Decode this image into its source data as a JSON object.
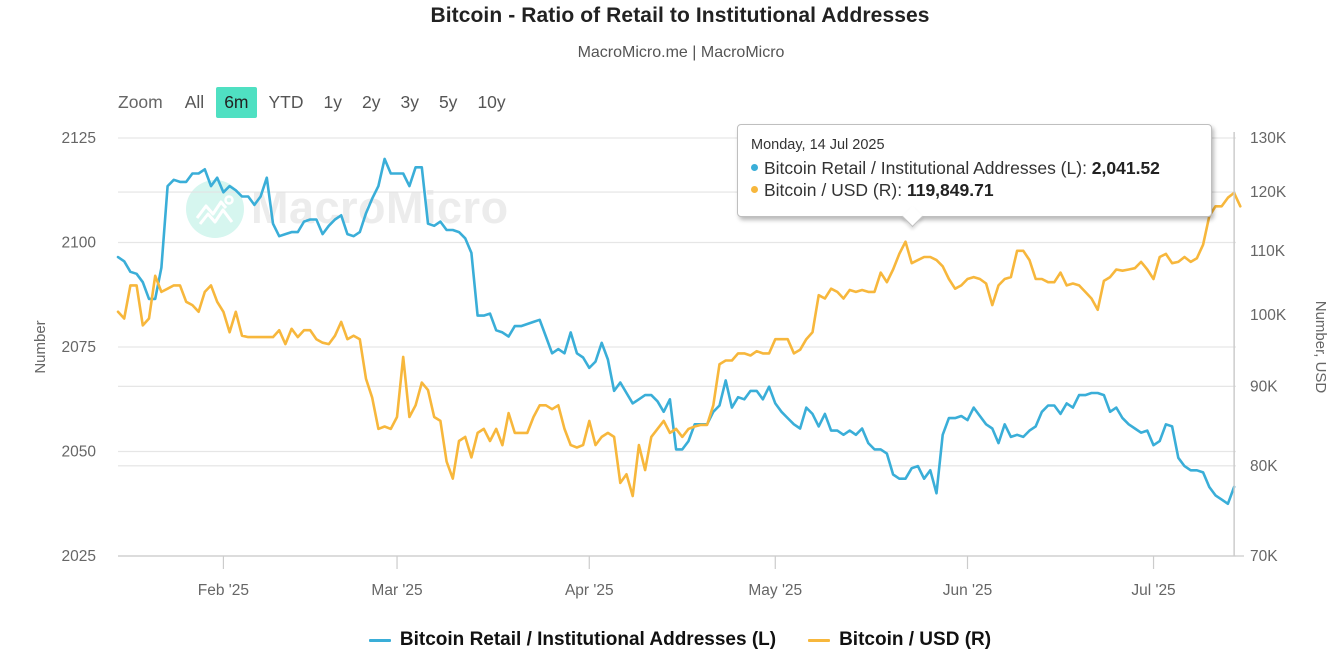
{
  "header": {
    "title": "Bitcoin - Ratio of Retail to Institutional Addresses",
    "subtitle": "MacroMicro.me | MacroMicro"
  },
  "range_selector": {
    "label": "Zoom",
    "buttons": [
      "All",
      "6m",
      "YTD",
      "1y",
      "2y",
      "3y",
      "5y",
      "10y"
    ],
    "active": "6m",
    "active_color": "#4fe0c2"
  },
  "watermark": {
    "text": "MacroMicro",
    "icon": "macromicro-logo-icon"
  },
  "tooltip": {
    "date": "Monday, 14 Jul 2025",
    "rows": [
      {
        "label": "Bitcoin Retail / Institutional Addresses (L): ",
        "value": "2,041.52",
        "color": "#3aaed8"
      },
      {
        "label": "Bitcoin / USD (R): ",
        "value": "119,849.71",
        "color": "#f7b73c"
      }
    ]
  },
  "legend": [
    {
      "label": "Bitcoin Retail / Institutional Addresses (L)",
      "color": "#3aaed8"
    },
    {
      "label": "Bitcoin / USD (R)",
      "color": "#f7b73c"
    }
  ],
  "chart_data": {
    "type": "line",
    "title": "Bitcoin - Ratio of Retail to Institutional Addresses",
    "subtitle": "MacroMicro.me | MacroMicro",
    "x_start": "2025-01-15",
    "x_step": "1 day",
    "x_ticks": [
      "Feb '25",
      "Mar '25",
      "Apr '25",
      "May '25",
      "Jun '25",
      "Jul '25"
    ],
    "x_tick_dates": [
      "2025-02-01",
      "2025-03-01",
      "2025-04-01",
      "2025-05-01",
      "2025-06-01",
      "2025-07-01"
    ],
    "y_left": {
      "label": "Number",
      "range": [
        2025,
        2125
      ],
      "ticks": [
        "2025",
        "2050",
        "2075",
        "2100",
        "2125"
      ],
      "scale": "linear"
    },
    "y_right": {
      "label": "Number, USD",
      "range": [
        70000,
        130000
      ],
      "ticks": [
        "70K",
        "80K",
        "90K",
        "100K",
        "110K",
        "120K",
        "130K"
      ],
      "tick_values": [
        70000,
        80000,
        90000,
        100000,
        110000,
        120000,
        130000
      ],
      "scale": "logarithmic"
    },
    "grid": true,
    "legend_position": "bottom",
    "series": [
      {
        "name": "Bitcoin Retail / Institutional Addresses (L)",
        "axis": "left",
        "color": "#3aaed8",
        "values": [
          2096.5,
          2095.5,
          2093,
          2092.5,
          2090.5,
          2086.5,
          2086.5,
          2094,
          2113.5,
          2115,
          2114.5,
          2114.5,
          2116.5,
          2116.5,
          2117.5,
          2113.5,
          2115.5,
          2112,
          2113.5,
          2112.5,
          2111,
          2111,
          2109,
          2111,
          2115.5,
          2104.5,
          2101.5,
          2102,
          2102.5,
          2102.5,
          2105,
          2105.5,
          2105.5,
          2102,
          2104,
          2105.5,
          2106.5,
          2102,
          2101.5,
          2102.5,
          2107,
          2110.5,
          2113.5,
          2120,
          2116.5,
          2116.5,
          2116.5,
          2113.5,
          2118,
          2118,
          2104.5,
          2104,
          2105,
          2103,
          2103,
          2102.5,
          2101,
          2097.5,
          2082.5,
          2082.5,
          2083,
          2079,
          2078.5,
          2077.5,
          2080,
          2080,
          2080.5,
          2081,
          2081.5,
          2077.5,
          2073.5,
          2074.5,
          2073.5,
          2078.5,
          2073.5,
          2072.5,
          2070,
          2071.5,
          2076,
          2072,
          2064.5,
          2066.5,
          2064,
          2061.5,
          2062.5,
          2063.5,
          2063.5,
          2062,
          2059.5,
          2062.5,
          2050.5,
          2050.5,
          2052.5,
          2056.5,
          2056.5,
          2056.5,
          2059.5,
          2061,
          2067,
          2060.5,
          2063,
          2062.5,
          2064.5,
          2064.5,
          2062.5,
          2065.5,
          2061.5,
          2059.5,
          2058,
          2056.5,
          2055.5,
          2060.5,
          2059,
          2056,
          2059,
          2055,
          2055,
          2054,
          2055,
          2054,
          2055.5,
          2052,
          2050.5,
          2050.5,
          2049.5,
          2044.5,
          2043.5,
          2043.5,
          2046,
          2046.5,
          2043.5,
          2045.5,
          2040,
          2054,
          2058,
          2058,
          2058.5,
          2057.5,
          2060.5,
          2058.5,
          2056.5,
          2055.5,
          2052,
          2056.5,
          2053.5,
          2054,
          2053.5,
          2055,
          2056,
          2059.5,
          2061,
          2061,
          2059,
          2061.5,
          2060.5,
          2063.5,
          2063.5,
          2064,
          2064,
          2063.5,
          2059.5,
          2060.5,
          2058,
          2056.5,
          2055.5,
          2054.5,
          2055,
          2051.5,
          2052.5,
          2056.5,
          2056,
          2048.5,
          2046.5,
          2045.5,
          2045.5,
          2045,
          2041.5,
          2039.5,
          2038.5,
          2037.5,
          2041.52
        ]
      },
      {
        "name": "Bitcoin / USD (R)",
        "axis": "right",
        "color": "#f7b73c",
        "values": [
          100500,
          99500,
          104500,
          104500,
          98500,
          99500,
          106000,
          103500,
          104000,
          104500,
          104500,
          102000,
          101500,
          100500,
          103500,
          104500,
          102000,
          100500,
          97500,
          100500,
          97000,
          96800,
          96800,
          96800,
          96800,
          96800,
          97800,
          95800,
          98000,
          96800,
          97800,
          97800,
          96500,
          96000,
          95800,
          97000,
          99000,
          96500,
          97000,
          96500,
          91000,
          88500,
          84500,
          84800,
          84500,
          86000,
          94000,
          86000,
          87500,
          90500,
          89500,
          86000,
          85500,
          80500,
          78500,
          83000,
          83500,
          81000,
          84000,
          84500,
          83000,
          84500,
          82500,
          86500,
          84000,
          84000,
          84000,
          86000,
          87500,
          87500,
          87000,
          87500,
          84500,
          82500,
          82200,
          82500,
          85500,
          82500,
          83500,
          84000,
          83500,
          78000,
          79000,
          76500,
          82500,
          79500,
          83500,
          84500,
          85500,
          84000,
          84500,
          83500,
          84500,
          84800,
          85000,
          85000,
          87500,
          93000,
          93500,
          93500,
          94500,
          94500,
          94200,
          94800,
          94500,
          94500,
          96500,
          96500,
          96500,
          94500,
          95000,
          96500,
          97500,
          103000,
          102500,
          104000,
          103500,
          102500,
          103800,
          103500,
          103800,
          103500,
          103500,
          106500,
          105000,
          107000,
          109500,
          111500,
          108000,
          108500,
          109000,
          109000,
          108500,
          107500,
          105500,
          104000,
          104500,
          105500,
          105800,
          105500,
          104800,
          101500,
          104500,
          105500,
          105800,
          110000,
          110000,
          108500,
          105500,
          105500,
          105000,
          105000,
          106500,
          104500,
          104800,
          104500,
          103500,
          102500,
          100800,
          105200,
          105800,
          107000,
          106800,
          107000,
          107200,
          108200,
          107000,
          105500,
          109000,
          109500,
          108000,
          108200,
          109000,
          108200,
          108800,
          111000,
          115800,
          117500,
          117500,
          119000,
          119849.71,
          117500
        ]
      }
    ],
    "highlighted_point": {
      "date": "2025-07-14",
      "left": 2041.52,
      "right": 119849.71
    }
  }
}
